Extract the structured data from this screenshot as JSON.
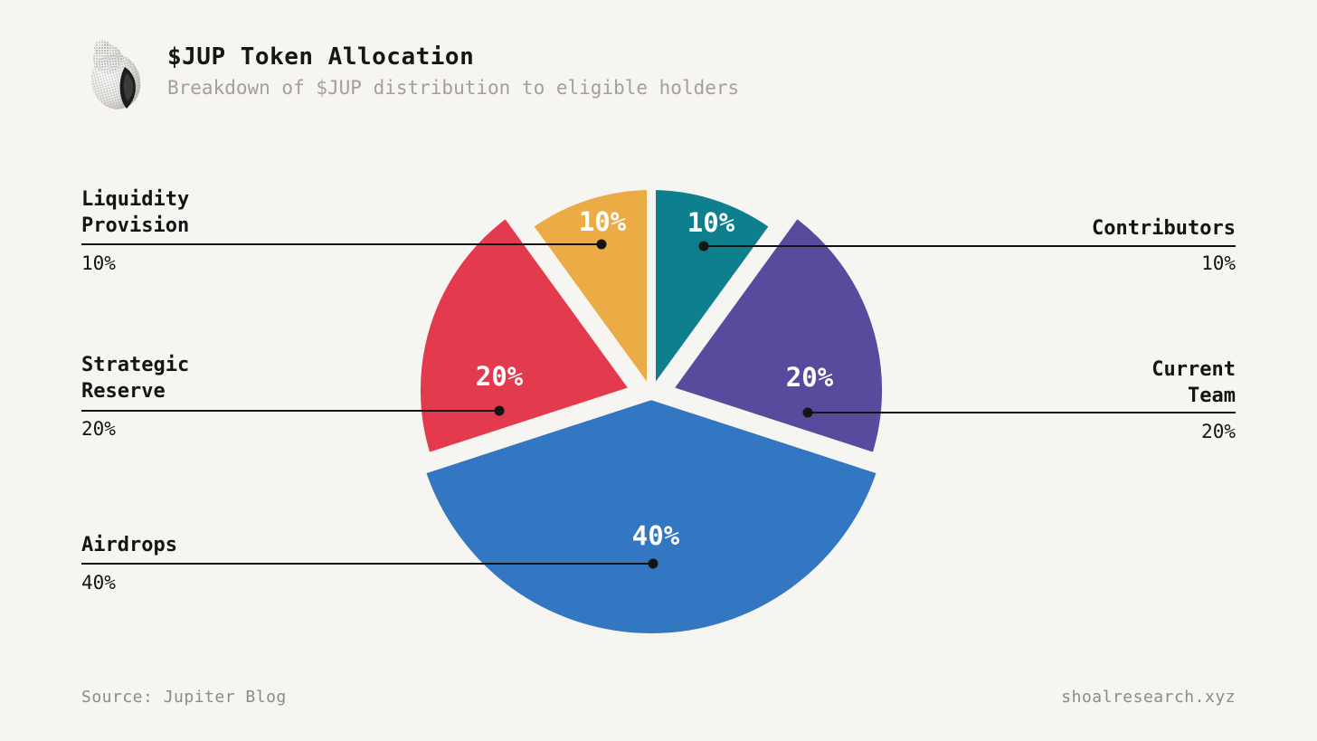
{
  "page": {
    "background": "#f7f5f1",
    "text_color": "#161616",
    "muted_text_color": "#a3a09a",
    "footer_text_color": "#8d8b86",
    "callout_line_color": "#141414",
    "slice_label_color": "#ffffff"
  },
  "header": {
    "logo_icon": "shell-logo",
    "title": "$JUP Token Allocation",
    "subtitle": "Breakdown of $JUP distribution to eligible holders"
  },
  "chart_data": {
    "type": "pie",
    "title": "$JUP Token Allocation",
    "units": "percent",
    "start_angle_deg": 0,
    "direction": "clockwise",
    "total": 100,
    "legend_position": "none",
    "labels_shown": "percent inside slices, category callouts with leader lines",
    "slices": [
      {
        "id": "contributors",
        "label": "Contributors",
        "label_lines": [
          "Contributors"
        ],
        "value": 10,
        "pct_label": "10%",
        "color": "#0e7f8d",
        "callout_side": "right",
        "exploded": false
      },
      {
        "id": "current-team",
        "label": "Current Team",
        "label_lines": [
          "Current",
          "Team"
        ],
        "value": 20,
        "pct_label": "20%",
        "color": "#584a9c",
        "callout_side": "right",
        "exploded": true
      },
      {
        "id": "airdrops",
        "label": "Airdrops",
        "label_lines": [
          "Airdrops"
        ],
        "value": 40,
        "pct_label": "40%",
        "color": "#3377c2",
        "callout_side": "left",
        "exploded": false
      },
      {
        "id": "strategic-reserve",
        "label": "Strategic Reserve",
        "label_lines": [
          "Strategic",
          "Reserve"
        ],
        "value": 20,
        "pct_label": "20%",
        "color": "#e43a4e",
        "callout_side": "left",
        "exploded": true
      },
      {
        "id": "liquidity-provision",
        "label": "Liquidity Provision",
        "label_lines": [
          "Liquidity",
          "Provision"
        ],
        "value": 10,
        "pct_label": "10%",
        "color": "#ebab45",
        "callout_side": "left",
        "exploded": false
      }
    ]
  },
  "footer": {
    "source": "Source: Jupiter Blog",
    "site": "shoalresearch.xyz"
  }
}
